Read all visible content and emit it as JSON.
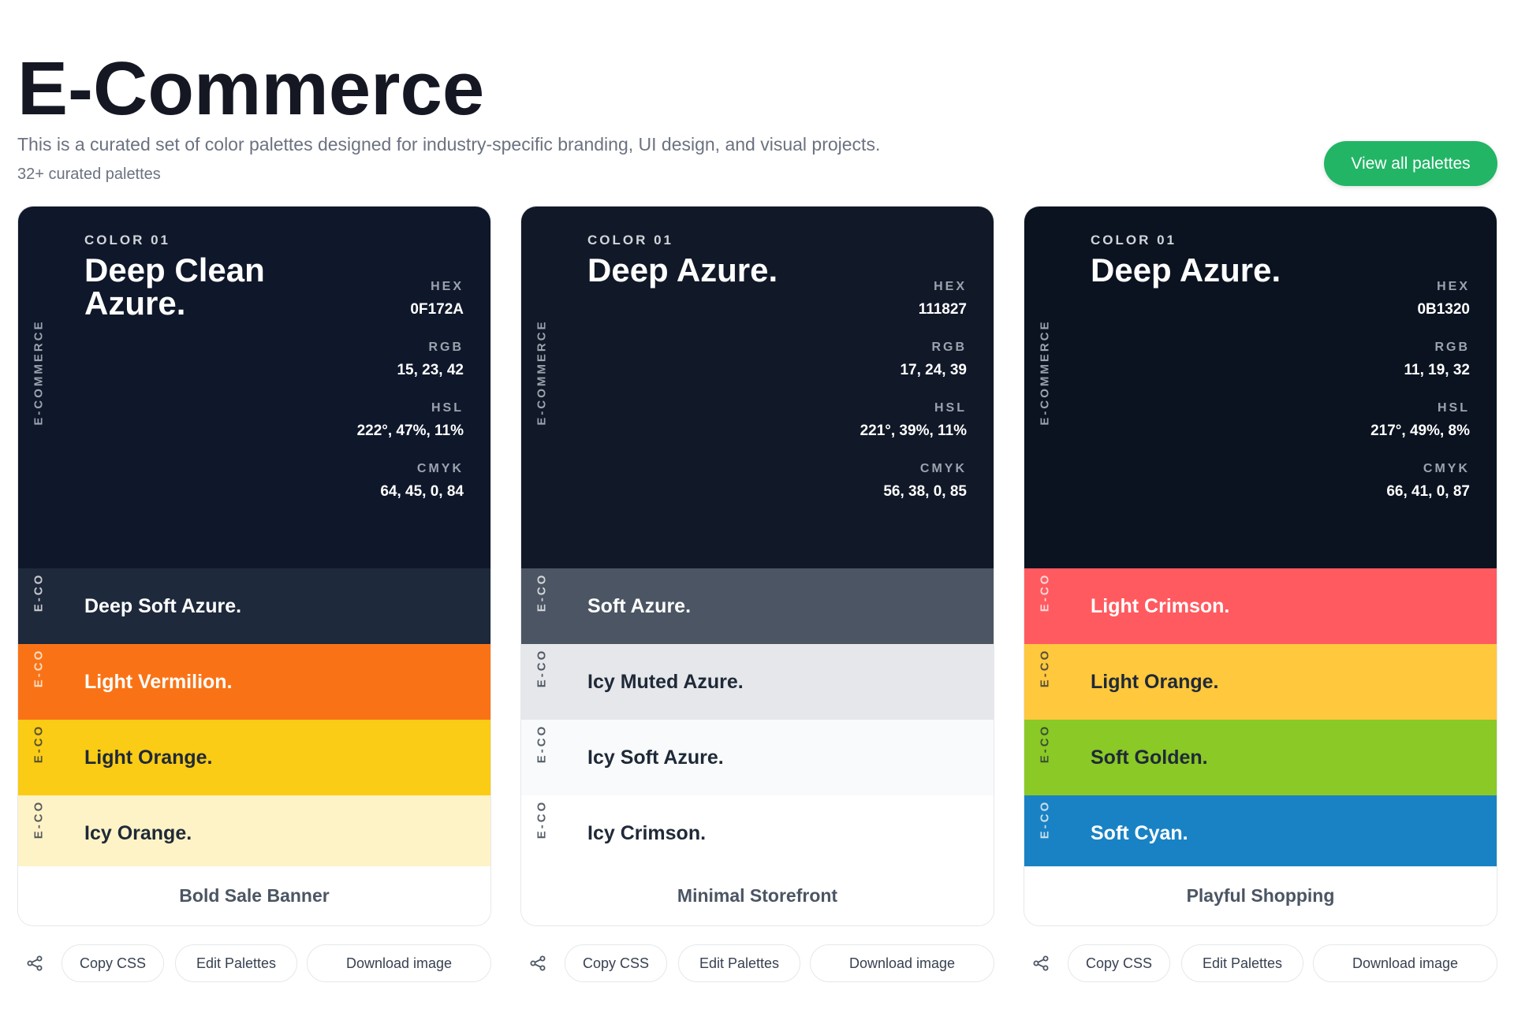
{
  "header": {
    "title": "E-Commerce",
    "description": "This is a curated set of color palettes designed for industry-specific branding, UI design, and visual projects.",
    "count": "32+ curated palettes",
    "view_all_label": "View all palettes"
  },
  "labels": {
    "hex": "HEX",
    "rgb": "RGB",
    "hsl": "HSL",
    "cmyk": "CMYK",
    "vertical": "E-COMMERCE",
    "vertical_short": "E-CO"
  },
  "actions": {
    "copy_css": "Copy CSS",
    "edit": "Edit Palettes",
    "download": "Download image",
    "share_icon": "share-icon"
  },
  "palettes": [
    {
      "name": "Bold Sale Banner",
      "primary": {
        "eyebrow": "COLOR 01",
        "name": "Deep Clean Azure.",
        "hex": "0F172A",
        "rgb": "15, 23, 42",
        "hsl": "222°, 47%, 11%",
        "cmyk": "64, 45, 0, 84",
        "color": "#0f172a"
      },
      "swatches": [
        {
          "name": "Deep Soft Azure.",
          "color": "#1e293b",
          "text_color": "#ffffff"
        },
        {
          "name": "Light Vermilion.",
          "color": "#f97316",
          "text_color": "#ffffff"
        },
        {
          "name": "Light Orange.",
          "color": "#facc15",
          "text_color": "#1f2937"
        },
        {
          "name": "Icy Orange.",
          "color": "#fef3c7",
          "text_color": "#1f2937"
        }
      ]
    },
    {
      "name": "Minimal Storefront",
      "primary": {
        "eyebrow": "COLOR 01",
        "name": "Deep Azure.",
        "hex": "111827",
        "rgb": "17, 24, 39",
        "hsl": "221°, 39%, 11%",
        "cmyk": "56, 38, 0, 85",
        "color": "#111827"
      },
      "swatches": [
        {
          "name": "Soft Azure.",
          "color": "#4b5563",
          "text_color": "#ffffff"
        },
        {
          "name": "Icy Muted Azure.",
          "color": "#e5e7eb",
          "text_color": "#1f2937"
        },
        {
          "name": "Icy Soft Azure.",
          "color": "#f9fafb",
          "text_color": "#1f2937"
        },
        {
          "name": "Icy Crimson.",
          "color": "#ffffff",
          "text_color": "#1f2937"
        }
      ]
    },
    {
      "name": "Playful Shopping",
      "primary": {
        "eyebrow": "COLOR 01",
        "name": "Deep Azure.",
        "hex": "0B1320",
        "rgb": "11, 19, 32",
        "hsl": "217°, 49%, 8%",
        "cmyk": "66, 41, 0, 87",
        "color": "#0b1320"
      },
      "swatches": [
        {
          "name": "Light Crimson.",
          "color": "#ff5a5f",
          "text_color": "#ffffff"
        },
        {
          "name": "Light Orange.",
          "color": "#ffc83d",
          "text_color": "#1f2937"
        },
        {
          "name": "Soft Golden.",
          "color": "#8ac926",
          "text_color": "#1f2937"
        },
        {
          "name": "Soft Cyan.",
          "color": "#1982c4",
          "text_color": "#ffffff"
        }
      ]
    }
  ]
}
